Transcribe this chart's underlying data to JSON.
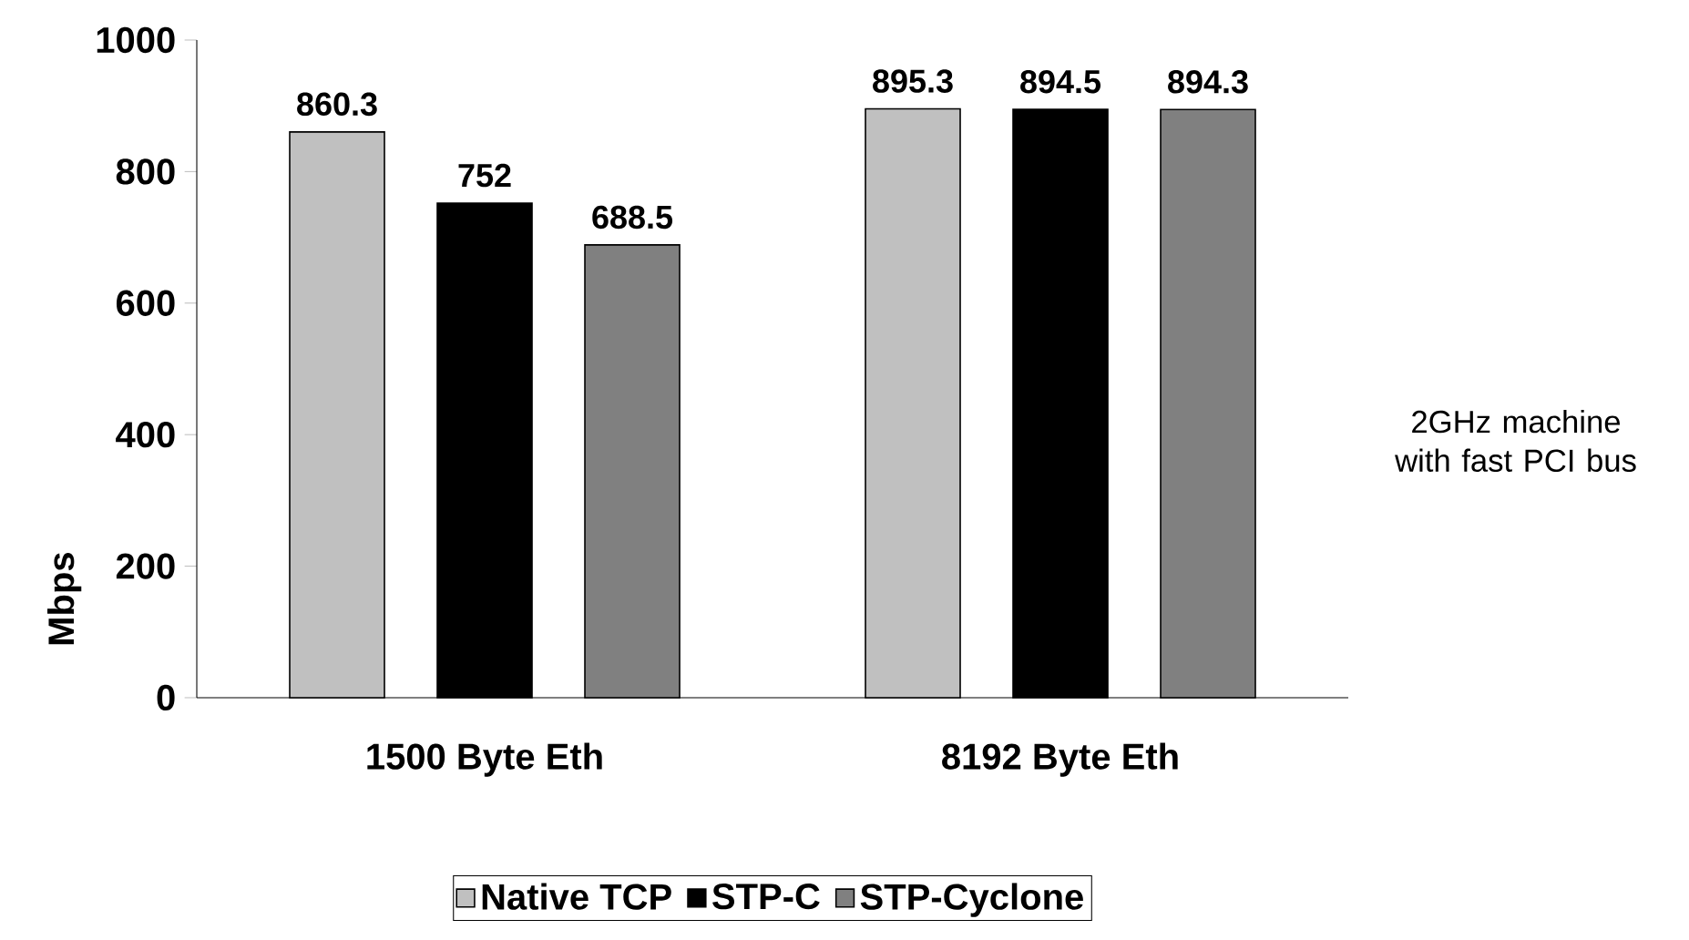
{
  "chart_data": {
    "type": "bar",
    "categories": [
      "1500 Byte Eth",
      "8192 Byte Eth"
    ],
    "series": [
      {
        "name": "Native TCP",
        "color": "#c0c0c0",
        "values": [
          860.3,
          895.3
        ]
      },
      {
        "name": "STP-C",
        "color": "#000000",
        "values": [
          752,
          894.5
        ]
      },
      {
        "name": "STP-Cyclone",
        "color": "#808080",
        "values": [
          688.5,
          894.3
        ]
      }
    ],
    "ylabel": "Mbps",
    "ylim": [
      0,
      1000
    ],
    "yticks": [
      0,
      200,
      400,
      600,
      800,
      1000
    ],
    "annotations": [
      "2GHz machine with fast PCI bus"
    ],
    "data_labels": true,
    "grid": false,
    "legend": "bottom"
  }
}
